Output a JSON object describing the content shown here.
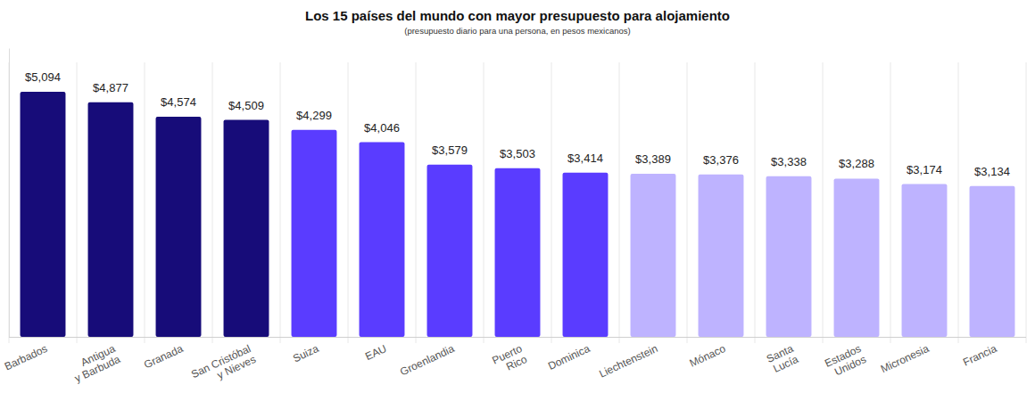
{
  "chart_data": {
    "type": "bar",
    "title": "Los 15 países del mundo con mayor presupuesto para alojamiento",
    "subtitle": "(presupuesto diario para una persona, en pesos mexicanos)",
    "categories": [
      "Barbados",
      "Antigua\ny Barbuda",
      "Granada",
      "San Cristóbal\ny Nieves",
      "Suiza",
      "EAU",
      "Groenlandia",
      "Puerto\nRico",
      "Dominica",
      "Liechtenstein",
      "Mónaco",
      "Santa\nLucía",
      "Estados\nUnidos",
      "Micronesia",
      "Francia"
    ],
    "values": [
      5094,
      4877,
      4574,
      4509,
      4299,
      4046,
      3579,
      3503,
      3414,
      3389,
      3376,
      3338,
      3288,
      3174,
      3134
    ],
    "value_labels": [
      "$5,094",
      "$4,877",
      "$4,574",
      "$4,509",
      "$4,299",
      "$4,046",
      "$3,579",
      "$3,503",
      "$3,414",
      "$3,389",
      "$3,376",
      "$3,338",
      "$3,288",
      "$3,174",
      "$3,134"
    ],
    "colors": [
      "#170c79",
      "#170c79",
      "#170c79",
      "#170c79",
      "#5a3cff",
      "#5a3cff",
      "#5a3cff",
      "#5a3cff",
      "#5a3cff",
      "#beb3ff",
      "#beb3ff",
      "#beb3ff",
      "#beb3ff",
      "#beb3ff",
      "#beb3ff"
    ],
    "ylim": [
      0,
      6000
    ],
    "data_labels": true,
    "tick_labels": "x"
  }
}
